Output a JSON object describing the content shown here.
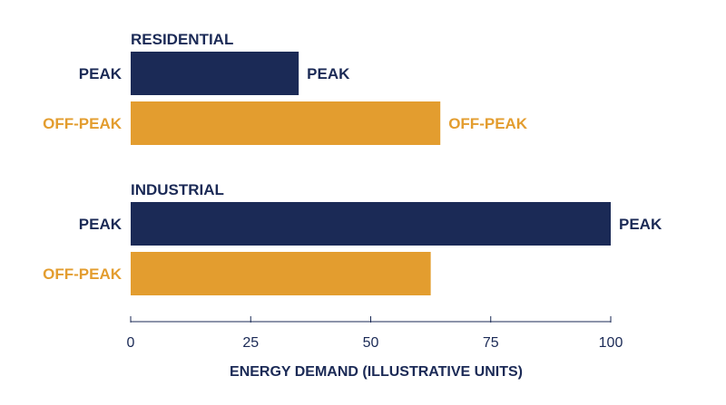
{
  "colors": {
    "peak": "#1b2a56",
    "off_peak": "#e39d2f",
    "text_dark": "#1b2a56",
    "axis": "#1b2a56",
    "background": "#ffffff"
  },
  "chart_data": {
    "type": "bar",
    "orientation": "horizontal",
    "xlabel": "ENERGY DEMAND (ILLUSTRATIVE UNITS)",
    "xlim": [
      0,
      100
    ],
    "xticks": [
      0,
      25,
      50,
      75,
      100
    ],
    "grid": false,
    "groups": [
      {
        "name": "RESIDENTIAL",
        "bars": [
          {
            "label": "PEAK",
            "series": "peak",
            "value": 35,
            "end_label": "PEAK"
          },
          {
            "label": "OFF-PEAK",
            "series": "off_peak",
            "value": 64.5,
            "end_label": "OFF-PEAK"
          }
        ]
      },
      {
        "name": "INDUSTRIAL",
        "bars": [
          {
            "label": "PEAK",
            "series": "peak",
            "value": 100,
            "end_label": "PEAK"
          },
          {
            "label": "OFF-PEAK",
            "series": "off_peak",
            "value": 62.5,
            "end_label": ""
          }
        ]
      }
    ]
  }
}
